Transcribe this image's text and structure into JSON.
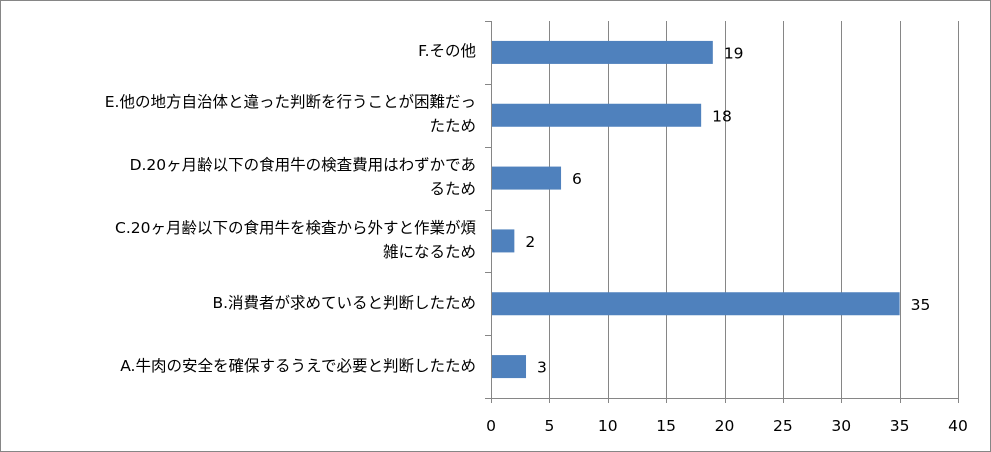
{
  "chart_data": {
    "type": "bar",
    "orientation": "horizontal",
    "categories": [
      "A.牛肉の安全を確保するうえで必要と判断したため",
      "B.消費者が求めていると判断したため",
      "C.20ヶ月齢以下の食用牛を検査から外すと作業が煩雑になるため",
      "D.20ヶ月齢以下の食用牛の検査費用はわずかであるため",
      "E.他の地方自治体と違った判断を行うことが困難だったため",
      "F.その他"
    ],
    "label_lines": [
      [
        "A.牛肉の安全を確保するうえで必要と判断したため"
      ],
      [
        "B.消費者が求めていると判断したため"
      ],
      [
        "C.20ヶ月齢以下の食用牛を検査から外すと作業が煩",
        "雑になるため"
      ],
      [
        "D.20ヶ月齢以下の食用牛の検査費用はわずかであ",
        "るため"
      ],
      [
        "E.他の地方自治体と違った判断を行うことが困難だっ",
        "たため"
      ],
      [
        "F.その他"
      ]
    ],
    "values": [
      3,
      35,
      2,
      6,
      18,
      19
    ],
    "xlim": [
      0,
      40
    ],
    "xticks": [
      0,
      5,
      10,
      15,
      20,
      25,
      30,
      35,
      40
    ],
    "grid": true,
    "data_labels": true,
    "legend": "none",
    "bar_color": "#4f81bd",
    "grid_color": "#868686"
  }
}
